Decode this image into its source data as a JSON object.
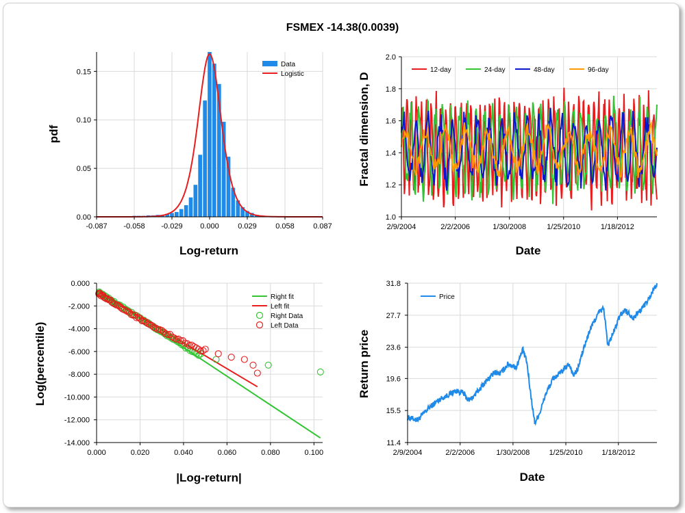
{
  "title": "FSMEX -14.38(0.0039)",
  "colors": {
    "blue": "#1f8ae8",
    "red": "#e81c1c",
    "green": "#33c433",
    "navy": "#0a16cc",
    "orange": "#ff9a00",
    "grid": "#d9d9d9"
  },
  "chart_data": [
    {
      "type": "bar",
      "panel": "histogram",
      "xlabel": "Log-return",
      "ylabel": "pdf",
      "xlim": [
        -0.087,
        0.087
      ],
      "ylim": [
        0,
        0.17
      ],
      "x_ticks": [
        "-0.087",
        "-0.058",
        "-0.029",
        "0.000",
        "0.029",
        "0.058",
        "0.087"
      ],
      "y_ticks": [
        "0.00",
        "0.05",
        "0.10",
        "0.15"
      ],
      "legend": [
        "Data",
        "Logistic"
      ],
      "bin_width": 0.00363,
      "bin_centers": [
        -0.0725,
        -0.0689,
        -0.0653,
        -0.0616,
        -0.058,
        -0.0544,
        -0.0508,
        -0.0471,
        -0.0435,
        -0.0399,
        -0.0363,
        -0.0326,
        -0.029,
        -0.0254,
        -0.0218,
        -0.0181,
        -0.0145,
        -0.0109,
        -0.0073,
        -0.0036,
        0.0,
        0.0036,
        0.0073,
        0.0109,
        0.0145,
        0.0181,
        0.0218,
        0.0254,
        0.029,
        0.0326,
        0.0363,
        0.0399,
        0.0435,
        0.0471,
        0.0508,
        0.0544,
        0.058,
        0.0616,
        0.0653,
        0.0689,
        0.0725
      ],
      "bin_values": [
        0.0005,
        0,
        0.0005,
        0.0005,
        0.001,
        0.001,
        0.001,
        0.0015,
        0.0015,
        0.002,
        0.002,
        0.003,
        0.004,
        0.005,
        0.008,
        0.012,
        0.02,
        0.033,
        0.064,
        0.12,
        0.173,
        0.158,
        0.137,
        0.098,
        0.062,
        0.03,
        0.017,
        0.01,
        0.006,
        0.004,
        0.002,
        0.0015,
        0.001,
        0.0005,
        0.0005,
        0.0005,
        0.0005,
        0,
        0.0005,
        0,
        0.0005
      ],
      "fit_name": "Logistic",
      "fit_peak": 0.168,
      "fit_scale": 0.00595
    },
    {
      "type": "line",
      "panel": "fractal",
      "xlabel": "Date",
      "ylabel": "Fractal dimension, D",
      "ylim": [
        1.0,
        2.0
      ],
      "y_ticks": [
        "1.0",
        "1.2",
        "1.4",
        "1.6",
        "1.8",
        "2.0"
      ],
      "x_ticks": [
        "2/9/2004",
        "2/2/2006",
        "1/30/2008",
        "1/25/2010",
        "1/18/2012"
      ],
      "series": [
        {
          "name": "12-day",
          "color": "red"
        },
        {
          "name": "24-day",
          "color": "green"
        },
        {
          "name": "48-day",
          "color": "navy"
        },
        {
          "name": "96-day",
          "color": "orange"
        }
      ]
    },
    {
      "type": "scatter",
      "panel": "tail",
      "xlabel": "|Log-return|",
      "ylabel": "Log(percentile)",
      "xlim": [
        0,
        0.104
      ],
      "ylim": [
        -14,
        0
      ],
      "x_ticks": [
        "0.000",
        "0.020",
        "0.040",
        "0.060",
        "0.080",
        "0.100"
      ],
      "y_ticks": [
        "0.000",
        "-2.000",
        "-4.000",
        "-6.000",
        "-8.000",
        "-10.000",
        "-12.000",
        "-14.000"
      ],
      "legend": [
        "Right fit",
        "Left fit",
        "Right Data",
        "Left Data"
      ],
      "right_fit": [
        [
          0.0,
          -0.6
        ],
        [
          0.103,
          -13.6
        ]
      ],
      "left_fit": [
        [
          0.0,
          -0.7
        ],
        [
          0.074,
          -9.1
        ]
      ],
      "right_tail_points": [
        [
          0.048,
          -6.2
        ],
        [
          0.055,
          -6.7
        ],
        [
          0.079,
          -7.2
        ],
        [
          0.103,
          -7.8
        ]
      ],
      "left_tail_points": [
        [
          0.05,
          -5.8
        ],
        [
          0.056,
          -6.2
        ],
        [
          0.062,
          -6.5
        ],
        [
          0.068,
          -6.7
        ],
        [
          0.072,
          -7.2
        ],
        [
          0.074,
          -7.9
        ]
      ]
    },
    {
      "type": "line",
      "panel": "price",
      "xlabel": "Date",
      "ylabel": "Return price",
      "ylim": [
        11.4,
        31.8
      ],
      "y_ticks": [
        "11.4",
        "15.5",
        "19.6",
        "23.6",
        "27.7",
        "31.8"
      ],
      "x_ticks": [
        "2/9/2004",
        "2/2/2006",
        "1/30/2008",
        "1/25/2010",
        "1/18/2012"
      ],
      "series": [
        {
          "name": "Price",
          "color": "blue"
        }
      ],
      "x_years": [
        2004.11,
        2004.5,
        2004.9,
        2005.3,
        2005.7,
        2005.9,
        2006.2,
        2006.4,
        2006.6,
        2007.0,
        2007.4,
        2007.6,
        2007.9,
        2008.2,
        2008.45,
        2008.6,
        2008.75,
        2008.9,
        2009.1,
        2009.3,
        2009.6,
        2009.9,
        2010.2,
        2010.35,
        2010.5,
        2010.7,
        2011.0,
        2011.3,
        2011.5,
        2011.65,
        2011.9,
        2012.1,
        2012.3,
        2012.6,
        2012.9,
        2013.2,
        2013.4,
        2013.5
      ],
      "y_values": [
        14.6,
        14.3,
        15.8,
        16.9,
        17.6,
        18.0,
        17.8,
        16.8,
        17.3,
        19.0,
        20.4,
        20.2,
        21.5,
        21.0,
        23.3,
        21.7,
        17.5,
        13.9,
        15.3,
        17.5,
        19.6,
        20.4,
        21.5,
        20.0,
        20.6,
        23.0,
        26.0,
        28.0,
        28.6,
        23.8,
        25.8,
        27.6,
        28.4,
        27.4,
        28.4,
        29.8,
        31.2,
        31.7
      ]
    }
  ]
}
